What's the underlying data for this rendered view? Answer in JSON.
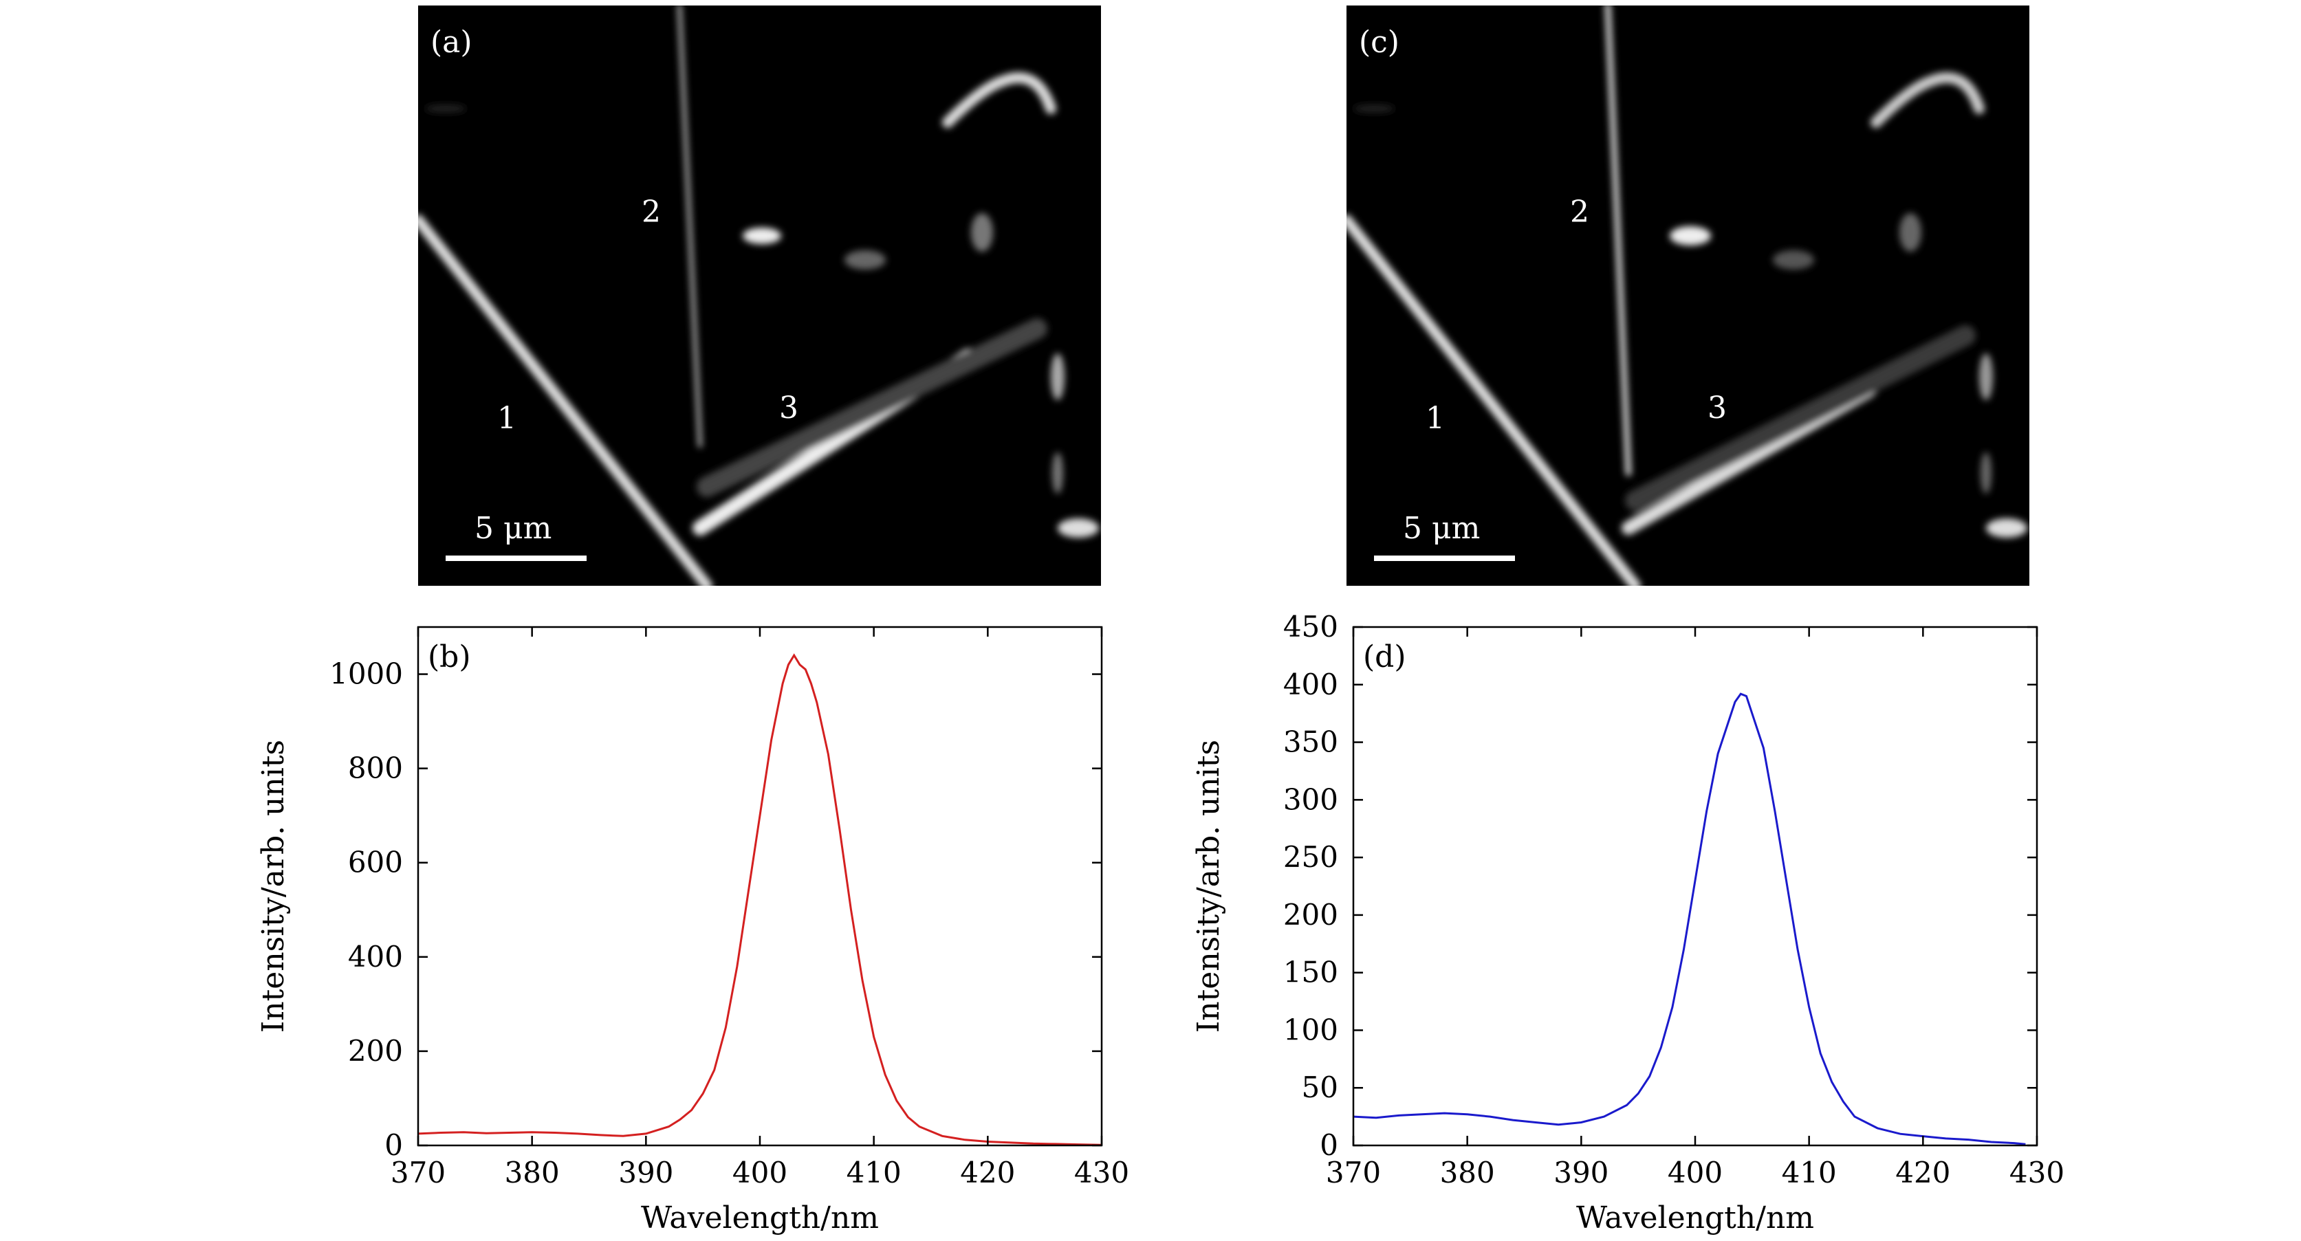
{
  "panels": {
    "a": {
      "label": "(a)",
      "wire_labels": [
        "1",
        "2",
        "3"
      ],
      "scale_bar": "5 μm"
    },
    "c": {
      "label": "(c)",
      "wire_labels": [
        "1",
        "2",
        "3"
      ],
      "scale_bar": "5 μm"
    }
  },
  "chart_data": [
    {
      "id": "b",
      "type": "line",
      "panel_label": "(b)",
      "title": "",
      "xlabel": "Wavelength/nm",
      "ylabel": "Intensity/arb. units",
      "xlim": [
        370,
        430
      ],
      "ylim": [
        0,
        1100
      ],
      "xticks": [
        370,
        380,
        390,
        400,
        410,
        420,
        430
      ],
      "yticks": [
        0,
        200,
        400,
        600,
        800,
        1000
      ],
      "color": "#d42020",
      "series": [
        {
          "name": "spectrum",
          "x": [
            370,
            372,
            374,
            376,
            378,
            380,
            382,
            384,
            386,
            388,
            390,
            392,
            393,
            394,
            395,
            396,
            397,
            398,
            399,
            400,
            401,
            402,
            402.5,
            403,
            403.5,
            404,
            404.5,
            405,
            406,
            407,
            408,
            409,
            410,
            411,
            412,
            413,
            414,
            416,
            418,
            420,
            422,
            424,
            426,
            428,
            430
          ],
          "y": [
            25,
            27,
            28,
            26,
            27,
            28,
            27,
            25,
            22,
            20,
            25,
            40,
            55,
            75,
            110,
            160,
            250,
            380,
            540,
            700,
            860,
            980,
            1020,
            1040,
            1020,
            1010,
            980,
            940,
            830,
            670,
            500,
            350,
            230,
            150,
            95,
            60,
            40,
            20,
            12,
            8,
            6,
            4,
            3,
            2,
            1
          ]
        }
      ]
    },
    {
      "id": "d",
      "type": "line",
      "panel_label": "(d)",
      "title": "",
      "xlabel": "Wavelength/nm",
      "ylabel": "Intensity/arb. units",
      "xlim": [
        370,
        430
      ],
      "ylim": [
        0,
        450
      ],
      "xticks": [
        370,
        380,
        390,
        400,
        410,
        420,
        430
      ],
      "yticks": [
        0,
        50,
        100,
        150,
        200,
        250,
        300,
        350,
        400,
        450
      ],
      "color": "#1a1acc",
      "series": [
        {
          "name": "spectrum",
          "x": [
            370,
            372,
            374,
            376,
            378,
            380,
            382,
            384,
            386,
            388,
            390,
            392,
            394,
            395,
            396,
            397,
            398,
            399,
            400,
            401,
            402,
            403,
            403.5,
            404,
            404.5,
            405,
            406,
            407,
            408,
            409,
            410,
            411,
            412,
            413,
            414,
            416,
            418,
            420,
            422,
            424,
            426,
            428,
            429
          ],
          "y": [
            25,
            24,
            26,
            27,
            28,
            27,
            25,
            22,
            20,
            18,
            20,
            25,
            35,
            45,
            60,
            85,
            120,
            170,
            230,
            290,
            340,
            370,
            385,
            392,
            390,
            375,
            345,
            290,
            230,
            170,
            120,
            80,
            55,
            38,
            25,
            15,
            10,
            8,
            6,
            5,
            3,
            2,
            1
          ]
        }
      ]
    }
  ]
}
